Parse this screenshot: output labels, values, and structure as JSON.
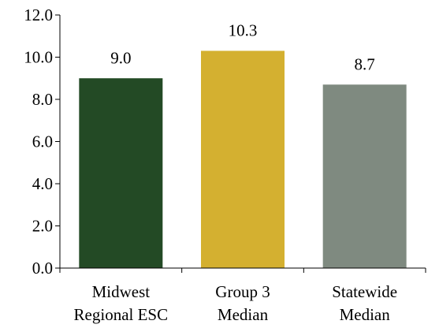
{
  "chart_data": {
    "type": "bar",
    "categories": [
      [
        "Midwest",
        "Regional ESC"
      ],
      [
        "Group 3",
        "Median"
      ],
      [
        "Statewide",
        "Median"
      ]
    ],
    "values": [
      9.0,
      10.3,
      8.7
    ],
    "value_labels": [
      "9.0",
      "10.3",
      "8.7"
    ],
    "colors": [
      "#234a25",
      "#d4b030",
      "#7f8a80"
    ],
    "ylim": [
      0,
      12
    ],
    "yticks": [
      0,
      2,
      4,
      6,
      8,
      10,
      12
    ],
    "ytick_labels": [
      "0.0",
      "2.0",
      "4.0",
      "6.0",
      "8.0",
      "10.0",
      "12.0"
    ],
    "grid": false,
    "title": "",
    "xlabel": "",
    "ylabel": ""
  }
}
